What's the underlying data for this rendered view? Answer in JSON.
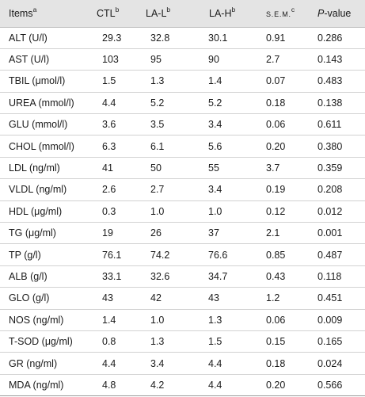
{
  "table": {
    "header": {
      "items": "Items",
      "items_sup": "a",
      "ctl": "CTL",
      "ctl_sup": "b",
      "lal": "LA-L",
      "lal_sup": "b",
      "lah": "LA-H",
      "lah_sup": "b",
      "sem": "S.E.M.",
      "sem_sup": "c",
      "p_italic": "P",
      "p_rest": "-value"
    },
    "rows": [
      [
        "ALT (U/l)",
        "29.3",
        "32.8",
        "30.1",
        "0.91",
        "0.286"
      ],
      [
        "AST (U/l)",
        "103",
        "95",
        "90",
        "2.7",
        "0.143"
      ],
      [
        "TBIL (μmol/l)",
        "1.5",
        "1.3",
        "1.4",
        "0.07",
        "0.483"
      ],
      [
        "UREA (mmol/l)",
        "4.4",
        "5.2",
        "5.2",
        "0.18",
        "0.138"
      ],
      [
        "GLU (mmol/l)",
        "3.6",
        "3.5",
        "3.4",
        "0.06",
        "0.611"
      ],
      [
        "CHOL (mmol/l)",
        "6.3",
        "6.1",
        "5.6",
        "0.20",
        "0.380"
      ],
      [
        "LDL (ng/ml)",
        "41",
        "50",
        "55",
        "3.7",
        "0.359"
      ],
      [
        "VLDL (ng/ml)",
        "2.6",
        "2.7",
        "3.4",
        "0.19",
        "0.208"
      ],
      [
        "HDL (μg/ml)",
        "0.3",
        "1.0",
        "1.0",
        "0.12",
        "0.012"
      ],
      [
        "TG (μg/ml)",
        "19",
        "26",
        "37",
        "2.1",
        "0.001"
      ],
      [
        "TP (g/l)",
        "76.1",
        "74.2",
        "76.6",
        "0.85",
        "0.487"
      ],
      [
        "ALB (g/l)",
        "33.1",
        "32.6",
        "34.7",
        "0.43",
        "0.118"
      ],
      [
        "GLO (g/l)",
        "43",
        "42",
        "43",
        "1.2",
        "0.451"
      ],
      [
        "NOS (ng/ml)",
        "1.4",
        "1.0",
        "1.3",
        "0.06",
        "0.009"
      ],
      [
        "T-SOD (μg/ml)",
        "0.8",
        "1.3",
        "1.5",
        "0.15",
        "0.165"
      ],
      [
        "GR (ng/ml)",
        "4.4",
        "3.4",
        "4.4",
        "0.18",
        "0.024"
      ],
      [
        "MDA (ng/ml)",
        "4.8",
        "4.2",
        "4.4",
        "0.20",
        "0.566"
      ]
    ]
  }
}
